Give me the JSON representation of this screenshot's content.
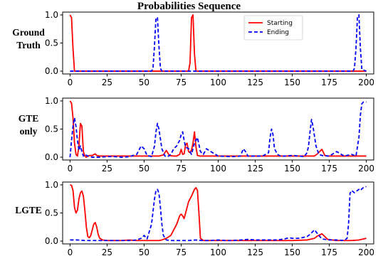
{
  "chart_data": {
    "type": "line",
    "title": "Probabilities Sequence",
    "colors": {
      "Starting": "#ff0000",
      "Ending": "#0000ff"
    },
    "legend": {
      "placement": "top-right",
      "entries": [
        "Starting",
        "Ending"
      ]
    },
    "panels": [
      {
        "label": [
          "Ground",
          "Truth"
        ],
        "xlim": [
          -5,
          205
        ],
        "ylim": [
          -0.05,
          1.05
        ],
        "xticks": [
          0,
          25,
          50,
          75,
          100,
          125,
          150,
          175,
          200
        ],
        "yticks": [
          0.0,
          0.5,
          1.0
        ],
        "series": [
          {
            "name": "Starting",
            "x": [
              0,
              1,
              2,
              3,
              4,
              80,
              81,
              82,
              83,
              84,
              85,
              200
            ],
            "y": [
              1.0,
              0.95,
              0.4,
              0.0,
              0.0,
              0.0,
              0.15,
              0.95,
              1.0,
              0.3,
              0.0,
              0.0
            ]
          },
          {
            "name": "Ending",
            "x": [
              0,
              55,
              56,
              57,
              58,
              59,
              60,
              61,
              62,
              191,
              192,
              193,
              194,
              195,
              196,
              197,
              200
            ],
            "y": [
              0,
              0,
              0.05,
              0.45,
              0.95,
              0.95,
              0.45,
              0.05,
              0,
              0,
              0.05,
              0.4,
              0.95,
              1.0,
              0.4,
              0.03,
              0
            ]
          }
        ]
      },
      {
        "label": [
          "GTE",
          "only"
        ],
        "xlim": [
          -5,
          205
        ],
        "ylim": [
          -0.05,
          1.05
        ],
        "xticks": [
          0,
          25,
          50,
          75,
          100,
          125,
          150,
          175,
          200
        ],
        "yticks": [
          0.0,
          0.5,
          1.0
        ],
        "series": [
          {
            "name": "Starting",
            "x": [
              0,
              1,
              2,
              3,
              4,
              5,
              6,
              7,
              8,
              9,
              10,
              11,
              12,
              13,
              15,
              17,
              18,
              20,
              22,
              25,
              30,
              35,
              40,
              45,
              50,
              55,
              60,
              63,
              65,
              67,
              70,
              72,
              74,
              75,
              76,
              77,
              78,
              79,
              80,
              81,
              82,
              83,
              84,
              85,
              86,
              88,
              90,
              95,
              100,
              110,
              120,
              130,
              140,
              150,
              160,
              165,
              167,
              170,
              172,
              174,
              180,
              190,
              200
            ],
            "y": [
              1.0,
              0.96,
              0.7,
              0.25,
              0.05,
              0.02,
              0.2,
              0.6,
              0.55,
              0.1,
              0.02,
              0.0,
              0.02,
              0.03,
              0.03,
              0.06,
              0.03,
              0.02,
              0.02,
              0.02,
              0.02,
              0.02,
              0.02,
              0.02,
              0.02,
              0.02,
              0.02,
              0.04,
              0.12,
              0.03,
              0.02,
              0.02,
              0.05,
              0.14,
              0.05,
              0.06,
              0.22,
              0.25,
              0.1,
              0.08,
              0.13,
              0.25,
              0.45,
              0.18,
              0.03,
              0.02,
              0.02,
              0.02,
              0.02,
              0.02,
              0.02,
              0.02,
              0.02,
              0.02,
              0.02,
              0.02,
              0.06,
              0.14,
              0.03,
              0.02,
              0.02,
              0.02,
              0.02
            ]
          },
          {
            "name": "Ending",
            "x": [
              0,
              1,
              2,
              3,
              4,
              5,
              6,
              7,
              8,
              9,
              10,
              12,
              15,
              20,
              25,
              30,
              35,
              40,
              45,
              47,
              48,
              50,
              52,
              55,
              57,
              58,
              59,
              60,
              62,
              64,
              66,
              68,
              70,
              72,
              74,
              75,
              76,
              77,
              78,
              80,
              82,
              84,
              86,
              88,
              90,
              92,
              95,
              100,
              110,
              115,
              117,
              119,
              120,
              122,
              125,
              130,
              134,
              135,
              136,
              137,
              138,
              140,
              142,
              145,
              150,
              155,
              158,
              160,
              161,
              162,
              163,
              164,
              166,
              168,
              170,
              175,
              180,
              185,
              190,
              193,
              195,
              196,
              197,
              198,
              200
            ],
            "y": [
              0,
              0.3,
              0.55,
              0.7,
              0.55,
              0.3,
              0.12,
              0.2,
              0.1,
              0.02,
              0.05,
              0.02,
              0,
              0,
              0.01,
              0.01,
              0,
              0.01,
              0.05,
              0.15,
              0.2,
              0.15,
              0.03,
              0.01,
              0.2,
              0.45,
              0.6,
              0.5,
              0.15,
              0.02,
              0.01,
              0.05,
              0.15,
              0.2,
              0.3,
              0.4,
              0.45,
              0.3,
              0.18,
              0.15,
              0.05,
              0.25,
              0.35,
              0.1,
              0.05,
              0.15,
              0.1,
              0.02,
              0.01,
              0.02,
              0.15,
              0.08,
              0.02,
              0.02,
              0.02,
              0.02,
              0.08,
              0.35,
              0.5,
              0.4,
              0.15,
              0.05,
              0.02,
              0.02,
              0.03,
              0.02,
              0.01,
              0.08,
              0.2,
              0.45,
              0.67,
              0.55,
              0.2,
              0.05,
              0.03,
              0.02,
              0.1,
              0.02,
              0.05,
              0.02,
              0.35,
              0.75,
              0.95,
              0.98,
              0.98
            ]
          }
        ]
      },
      {
        "label": [
          "LGTE"
        ],
        "xlim": [
          -5,
          205
        ],
        "ylim": [
          -0.05,
          1.05
        ],
        "xticks": [
          0,
          25,
          50,
          75,
          100,
          125,
          150,
          175,
          200
        ],
        "yticks": [
          0.0,
          0.5,
          1.0
        ],
        "series": [
          {
            "name": "Starting",
            "x": [
              0,
              1,
              2,
              3,
              4,
              5,
              6,
              7,
              8,
              9,
              10,
              11,
              12,
              13,
              14,
              15,
              16,
              17,
              18,
              19,
              20,
              22,
              25,
              30,
              35,
              40,
              45,
              50,
              55,
              60,
              62,
              65,
              68,
              70,
              72,
              74,
              75,
              76,
              77,
              78,
              79,
              80,
              82,
              84,
              85,
              86,
              87,
              88,
              90,
              95,
              100,
              105,
              110,
              120,
              130,
              140,
              150,
              160,
              165,
              167,
              170,
              172,
              174,
              180,
              190,
              195,
              200
            ],
            "y": [
              1.0,
              0.99,
              0.9,
              0.6,
              0.5,
              0.55,
              0.75,
              0.86,
              0.89,
              0.8,
              0.55,
              0.25,
              0.08,
              0.06,
              0.1,
              0.2,
              0.3,
              0.33,
              0.25,
              0.12,
              0.05,
              0.02,
              0.01,
              0.01,
              0.01,
              0.02,
              0.01,
              0.01,
              0.01,
              0.01,
              0.02,
              0.05,
              0.1,
              0.2,
              0.3,
              0.45,
              0.48,
              0.45,
              0.4,
              0.5,
              0.6,
              0.7,
              0.8,
              0.92,
              0.95,
              0.9,
              0.5,
              0.05,
              0.01,
              0.01,
              0.01,
              0.01,
              0.01,
              0.01,
              0.01,
              0.01,
              0.01,
              0.02,
              0.05,
              0.09,
              0.13,
              0.08,
              0.03,
              0.01,
              0.01,
              0.02,
              0.05
            ]
          },
          {
            "name": "Ending",
            "x": [
              0,
              5,
              10,
              15,
              20,
              25,
              30,
              35,
              40,
              45,
              48,
              50,
              52,
              55,
              57,
              58,
              59,
              60,
              61,
              62,
              63,
              65,
              68,
              70,
              75,
              80,
              85,
              90,
              95,
              100,
              105,
              110,
              115,
              120,
              125,
              130,
              135,
              140,
              145,
              148,
              150,
              155,
              160,
              162,
              165,
              168,
              170,
              175,
              180,
              185,
              187,
              188,
              189,
              190,
              191,
              192,
              193,
              194,
              195,
              196,
              197,
              198,
              200
            ],
            "y": [
              0.02,
              0.02,
              0.01,
              0.01,
              0.01,
              0.01,
              0.01,
              0.01,
              0.01,
              0.02,
              0.05,
              0.1,
              0.04,
              0.3,
              0.75,
              0.9,
              0.92,
              0.85,
              0.6,
              0.3,
              0.1,
              0.02,
              0.01,
              0.01,
              0.01,
              0.01,
              0.02,
              0.01,
              0.01,
              0.02,
              0.01,
              0.01,
              0.02,
              0.03,
              0.02,
              0.02,
              0.02,
              0.02,
              0.04,
              0.06,
              0.05,
              0.05,
              0.08,
              0.12,
              0.2,
              0.1,
              0.04,
              0.02,
              0.02,
              0.01,
              0.05,
              0.3,
              0.85,
              0.9,
              0.88,
              0.86,
              0.88,
              0.9,
              0.92,
              0.9,
              0.93,
              0.95,
              0.97
            ]
          }
        ]
      }
    ]
  }
}
